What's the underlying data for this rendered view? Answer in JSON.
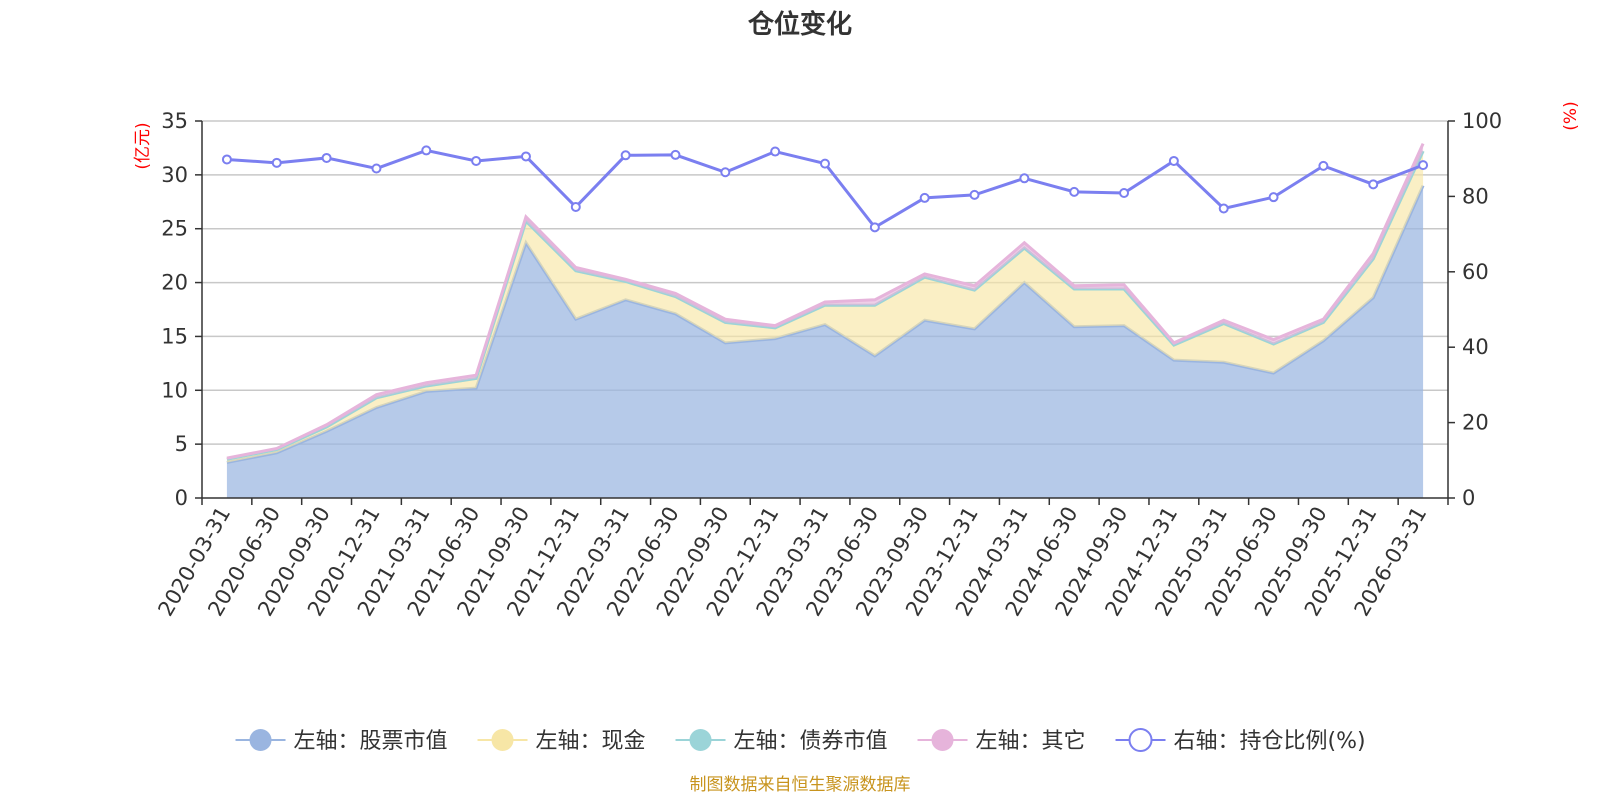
{
  "chart_data": {
    "type": "area",
    "title": "仓位变化",
    "left_axis_unit": "(亿元)",
    "right_axis_unit": "(%)",
    "left_ylim": [
      0,
      35
    ],
    "left_yticks": [
      0,
      5,
      10,
      15,
      20,
      25,
      30,
      35
    ],
    "right_ylim": [
      0,
      100
    ],
    "right_yticks": [
      0,
      20,
      40,
      60,
      80,
      100
    ],
    "categories": [
      "2020-03-31",
      "2020-06-30",
      "2020-09-30",
      "2020-12-31",
      "2021-03-31",
      "2021-06-30",
      "2021-09-30",
      "2021-12-31",
      "2022-03-31",
      "2022-06-30",
      "2022-09-30",
      "2022-12-31",
      "2023-03-31",
      "2023-06-30",
      "2023-09-30",
      "2023-12-31",
      "2024-03-31",
      "2024-06-30",
      "2024-09-30",
      "2024-12-31",
      "2025-03-31",
      "2025-06-30",
      "2025-09-30",
      "2025-12-31",
      "2026-03-31"
    ],
    "series": [
      {
        "name": "左轴：股票市值",
        "axis": "left",
        "type": "area",
        "color": "#9ab5e0",
        "values": [
          3.3,
          4.2,
          6.2,
          8.4,
          9.9,
          10.2,
          23.7,
          16.6,
          18.4,
          17.1,
          14.4,
          14.8,
          16.1,
          13.2,
          16.5,
          15.7,
          20.0,
          15.9,
          16.0,
          12.8,
          12.6,
          11.6,
          14.6,
          18.6,
          29.0
        ]
      },
      {
        "name": "左轴：现金",
        "axis": "left",
        "type": "area",
        "color": "#f7e6a6",
        "values": [
          0.3,
          0.3,
          0.4,
          0.9,
          0.5,
          0.9,
          2.0,
          4.5,
          1.7,
          1.6,
          1.9,
          1.0,
          1.8,
          4.7,
          4.0,
          3.6,
          3.2,
          3.5,
          3.4,
          1.4,
          3.6,
          2.7,
          1.7,
          3.6,
          3.2
        ]
      },
      {
        "name": "左轴：债券市值",
        "axis": "left",
        "type": "area",
        "color": "#9bd4d8",
        "values": [
          0,
          0,
          0,
          0,
          0,
          0,
          0,
          0,
          0,
          0,
          0,
          0,
          0,
          0,
          0,
          0,
          0,
          0,
          0,
          0,
          0,
          0,
          0,
          0,
          0
        ]
      },
      {
        "name": "左轴：其它",
        "axis": "left",
        "type": "area",
        "color": "#e6b4db",
        "values": [
          0.1,
          0.1,
          0.2,
          0.3,
          0.3,
          0.3,
          0.4,
          0.3,
          0.2,
          0.3,
          0.3,
          0.2,
          0.3,
          0.5,
          0.3,
          0.4,
          0.5,
          0.3,
          0.4,
          0.2,
          0.3,
          0.4,
          0.3,
          0.5,
          0.7
        ]
      },
      {
        "name": "右轴：持仓比例(%)",
        "axis": "right",
        "type": "line",
        "color": "#7b7ff0",
        "values": [
          89.8,
          88.9,
          90.2,
          87.4,
          92.2,
          89.4,
          90.6,
          77.2,
          90.9,
          91.0,
          86.4,
          91.9,
          88.7,
          71.8,
          79.6,
          80.4,
          84.8,
          81.2,
          80.9,
          89.4,
          76.8,
          79.8,
          88.1,
          83.2,
          88.3
        ]
      }
    ],
    "legend_position": "bottom-center",
    "grid": true
  },
  "source_note": "制图数据来自恒生聚源数据库"
}
